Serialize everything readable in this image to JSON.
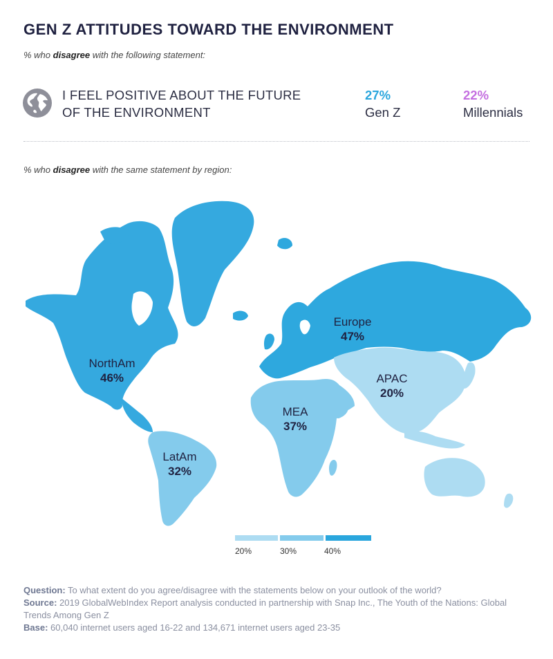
{
  "header": {
    "title": "GEN Z ATTITUDES TOWARD THE ENVIRONMENT",
    "sub1_pre": "% who ",
    "sub1_em": "disagree",
    "sub1_post": " with the following statement:",
    "sub2_pre": "% who ",
    "sub2_em": "disagree",
    "sub2_post": " with the same statement by region:"
  },
  "statement": {
    "icon": "globe-icon",
    "line1": "I FEEL POSITIVE ABOUT THE FUTURE",
    "line2": "OF THE ENVIRONMENT",
    "genz_value": "27%",
    "genz_label": "Gen Z",
    "millennials_value": "22%",
    "millennials_label": "Millennials"
  },
  "regions": [
    {
      "name": "NorthAm",
      "value": "46%"
    },
    {
      "name": "Europe",
      "value": "47%"
    },
    {
      "name": "APAC",
      "value": "20%"
    },
    {
      "name": "MEA",
      "value": "37%"
    },
    {
      "name": "LatAm",
      "value": "32%"
    }
  ],
  "legend": {
    "ticks": [
      "20%",
      "30%",
      "40%"
    ]
  },
  "colors": {
    "genz": "#2aa6dd",
    "millennials": "#c46fe0",
    "scale_20": "#addcf2",
    "scale_30": "#84cbec",
    "scale_40": "#2aa6dd",
    "europe": "#2ea8de",
    "northam": "#35a9df"
  },
  "footer": {
    "question_label": "Question:",
    "question_text": " To what extent do you agree/disagree with the statements below on your outlook of the world?",
    "source_label": "Source:",
    "source_text": " 2019 GlobalWebIndex Report analysis conducted in partnership with Snap Inc., The Youth of the Nations: Global Trends Among Gen Z",
    "base_label": "Base:",
    "base_text": " 60,040 internet users aged 16-22 and 134,671 internet users aged 23-35"
  }
}
